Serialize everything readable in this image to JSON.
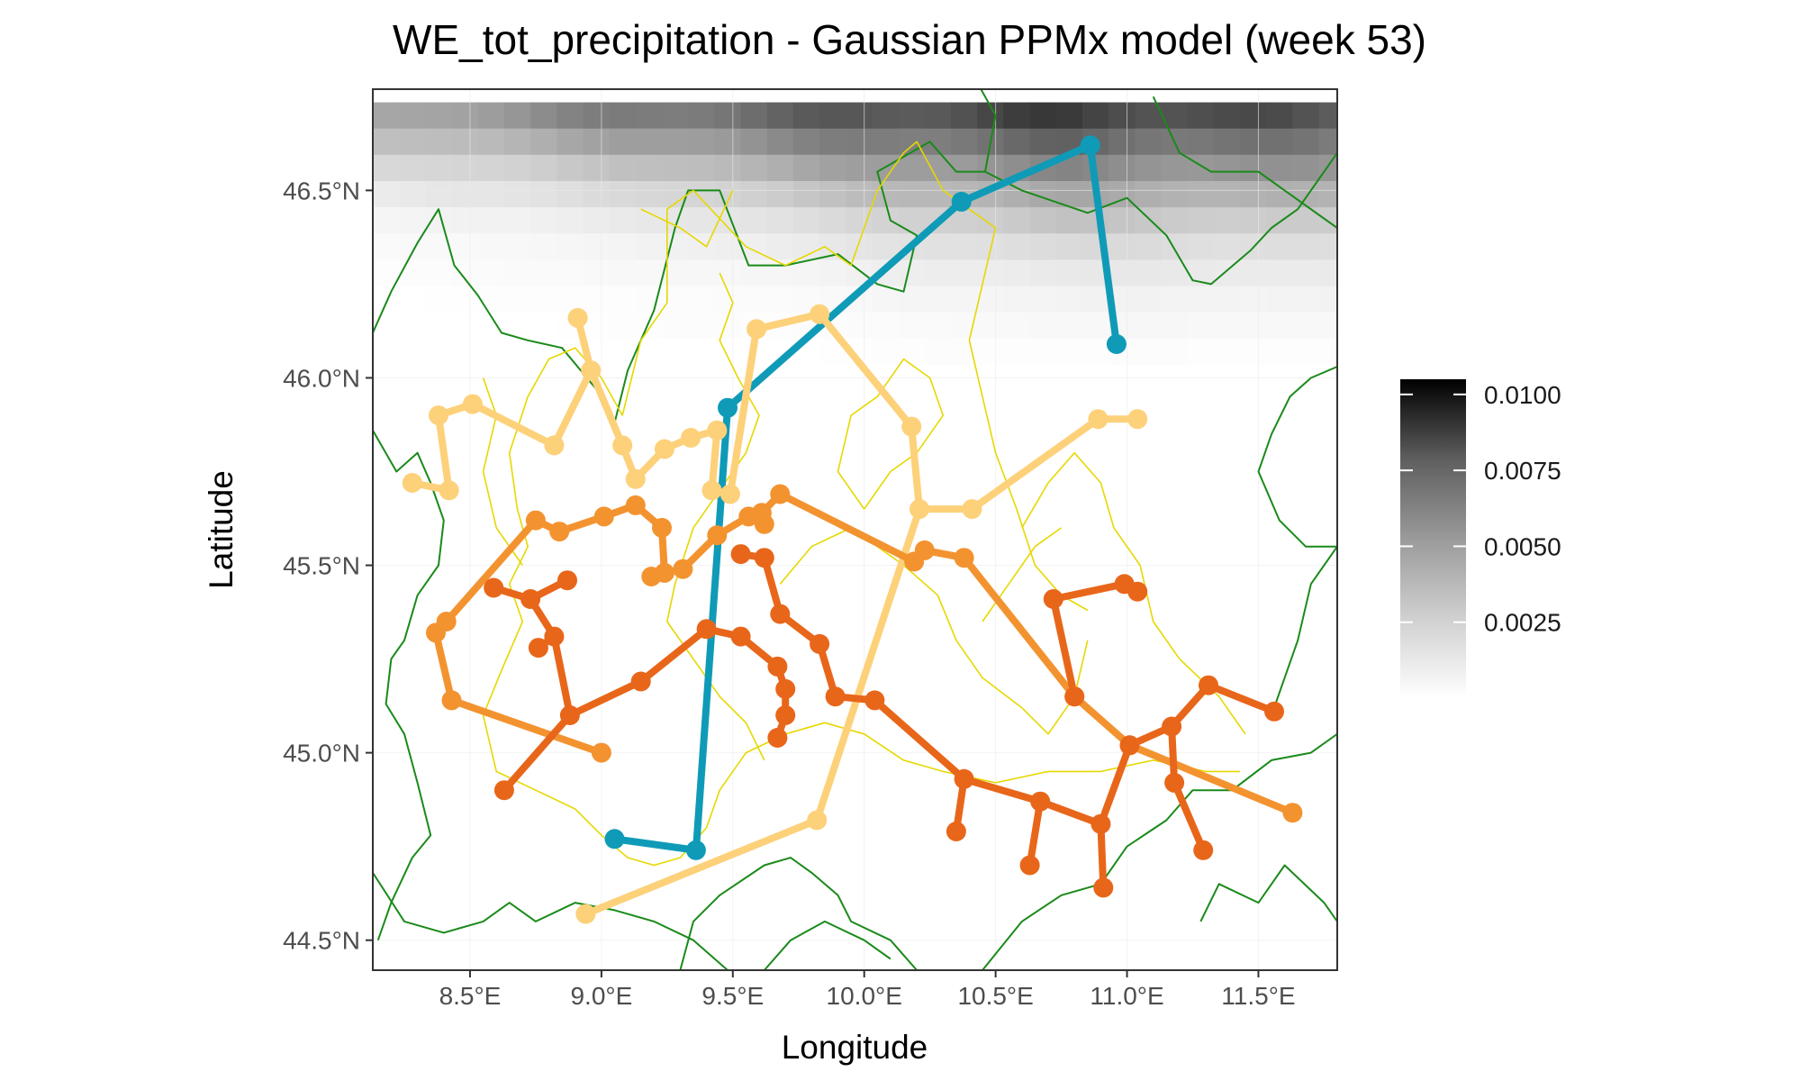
{
  "title": "WE_tot_precipitation - Gaussian PPMx model (week 53)",
  "colors": {
    "border_green": "#1a8a1a",
    "region_yellow": "#e6d800",
    "cluster_blue": "#0f9bb7",
    "cluster_light_orange": "#fdd17a",
    "cluster_orange": "#f39330",
    "cluster_dark_orange": "#e8661a",
    "tile_high": "#000000",
    "tile_low": "#ffffff"
  },
  "chart_data": {
    "type": "map",
    "xlabel": "Longitude",
    "ylabel": "Latitude",
    "xlim": [
      8.13,
      11.8
    ],
    "ylim": [
      44.42,
      46.77
    ],
    "x_ticks": [
      8.5,
      9.0,
      9.5,
      10.0,
      10.5,
      11.0,
      11.5
    ],
    "x_tick_labels": [
      "8.5°E",
      "9.0°E",
      "9.5°E",
      "10.0°E",
      "10.5°E",
      "11.0°E",
      "11.5°E"
    ],
    "y_ticks": [
      44.5,
      45.0,
      45.5,
      46.0,
      46.5
    ],
    "y_tick_labels": [
      "44.5°N",
      "45.0°N",
      "45.5°N",
      "46.0°N",
      "46.5°N"
    ],
    "background_panel": "white",
    "grid": "faint",
    "legend": {
      "placement": "right",
      "type": "colorbar",
      "range": [
        0,
        0.0105
      ],
      "ticks": [
        0.0025,
        0.005,
        0.0075,
        0.01
      ],
      "tick_labels": [
        "0.0025",
        "0.0050",
        "0.0075",
        "0.0100"
      ]
    },
    "precipitation_field": {
      "description_rows_top_to_bottom_lat": [
        46.7,
        46.63,
        46.56,
        46.49,
        46.42,
        46.35,
        46.28,
        46.21,
        46.14,
        46.07,
        46.0
      ],
      "lon_profile": [
        8.15,
        8.7,
        9.2,
        9.7,
        10.2,
        10.7,
        11.2,
        11.7
      ],
      "intensity_by_row": [
        [
          0.0035,
          0.0045,
          0.0055,
          0.0063,
          0.0072,
          0.0078,
          0.0074,
          0.0068
        ],
        [
          0.0025,
          0.0032,
          0.004,
          0.0048,
          0.0056,
          0.0062,
          0.0058,
          0.0054
        ],
        [
          0.0015,
          0.002,
          0.0026,
          0.0034,
          0.0042,
          0.0048,
          0.0045,
          0.0042
        ],
        [
          0.0008,
          0.0012,
          0.0016,
          0.0022,
          0.003,
          0.0035,
          0.0033,
          0.003
        ],
        [
          0.0004,
          0.0006,
          0.0009,
          0.0013,
          0.0019,
          0.0024,
          0.0022,
          0.002
        ],
        [
          0.0002,
          0.0003,
          0.0005,
          0.0008,
          0.0012,
          0.0015,
          0.0014,
          0.0013
        ],
        [
          0.0001,
          0.0002,
          0.0003,
          0.0004,
          0.0007,
          0.0009,
          0.0009,
          0.0008
        ],
        [
          0.0,
          0.0001,
          0.0001,
          0.0002,
          0.0004,
          0.0005,
          0.0005,
          0.0005
        ],
        [
          0.0,
          0.0,
          0.0001,
          0.0001,
          0.0002,
          0.0003,
          0.0003,
          0.0003
        ],
        [
          0.0,
          0.0,
          0.0,
          0.0,
          0.0001,
          0.0001,
          0.0001,
          0.0001
        ],
        [
          0.0,
          0.0,
          0.0,
          0.0,
          0.0,
          0.0,
          0.0,
          0.0
        ]
      ]
    },
    "clusters": [
      {
        "color": "#0f9bb7",
        "edges": [
          [
            [
              9.05,
              44.77
            ],
            [
              9.36,
              44.74
            ]
          ],
          [
            [
              9.36,
              44.74
            ],
            [
              9.48,
              45.92
            ]
          ],
          [
            [
              9.48,
              45.92
            ],
            [
              10.37,
              46.47
            ]
          ],
          [
            [
              10.37,
              46.47
            ],
            [
              10.86,
              46.62
            ]
          ],
          [
            [
              10.86,
              46.62
            ],
            [
              10.96,
              46.09
            ]
          ]
        ]
      },
      {
        "color": "#fdd17a",
        "edges": [
          [
            [
              8.28,
              45.72
            ],
            [
              8.42,
              45.7
            ]
          ],
          [
            [
              8.42,
              45.7
            ],
            [
              8.38,
              45.9
            ]
          ],
          [
            [
              8.38,
              45.9
            ],
            [
              8.51,
              45.93
            ]
          ],
          [
            [
              8.51,
              45.93
            ],
            [
              8.82,
              45.82
            ]
          ],
          [
            [
              8.82,
              45.82
            ],
            [
              8.96,
              46.02
            ]
          ],
          [
            [
              8.96,
              46.02
            ],
            [
              8.91,
              46.16
            ]
          ],
          [
            [
              8.96,
              46.02
            ],
            [
              9.08,
              45.82
            ]
          ],
          [
            [
              9.08,
              45.82
            ],
            [
              9.13,
              45.73
            ]
          ],
          [
            [
              9.13,
              45.73
            ],
            [
              9.24,
              45.81
            ]
          ],
          [
            [
              9.24,
              45.81
            ],
            [
              9.34,
              45.84
            ]
          ],
          [
            [
              9.34,
              45.84
            ],
            [
              9.44,
              45.86
            ]
          ],
          [
            [
              9.44,
              45.86
            ],
            [
              9.42,
              45.7
            ]
          ],
          [
            [
              9.42,
              45.7
            ],
            [
              9.49,
              45.69
            ]
          ],
          [
            [
              9.49,
              45.69
            ],
            [
              9.59,
              46.13
            ]
          ],
          [
            [
              9.59,
              46.13
            ],
            [
              9.83,
              46.17
            ]
          ],
          [
            [
              9.83,
              46.17
            ],
            [
              10.18,
              45.87
            ]
          ],
          [
            [
              10.18,
              45.87
            ],
            [
              10.21,
              45.65
            ]
          ],
          [
            [
              10.21,
              45.65
            ],
            [
              10.41,
              45.65
            ]
          ],
          [
            [
              10.41,
              45.65
            ],
            [
              10.89,
              45.89
            ]
          ],
          [
            [
              10.89,
              45.89
            ],
            [
              11.04,
              45.89
            ]
          ],
          [
            [
              10.21,
              45.65
            ],
            [
              9.82,
              44.82
            ]
          ],
          [
            [
              9.82,
              44.82
            ],
            [
              8.94,
              44.57
            ]
          ]
        ]
      },
      {
        "color": "#f39330",
        "edges": [
          [
            [
              8.75,
              45.62
            ],
            [
              8.84,
              45.59
            ]
          ],
          [
            [
              8.84,
              45.59
            ],
            [
              9.01,
              45.63
            ]
          ],
          [
            [
              9.01,
              45.63
            ],
            [
              9.13,
              45.66
            ]
          ],
          [
            [
              8.75,
              45.62
            ],
            [
              8.41,
              45.35
            ]
          ],
          [
            [
              8.41,
              45.35
            ],
            [
              8.37,
              45.32
            ]
          ],
          [
            [
              8.37,
              45.32
            ],
            [
              8.43,
              45.14
            ]
          ],
          [
            [
              8.43,
              45.14
            ],
            [
              9.0,
              45.0
            ]
          ],
          [
            [
              9.13,
              45.66
            ],
            [
              9.23,
              45.6
            ]
          ],
          [
            [
              9.23,
              45.6
            ],
            [
              9.24,
              45.48
            ]
          ],
          [
            [
              9.24,
              45.48
            ],
            [
              9.19,
              45.47
            ]
          ],
          [
            [
              9.24,
              45.48
            ],
            [
              9.31,
              45.49
            ]
          ],
          [
            [
              9.31,
              45.49
            ],
            [
              9.44,
              45.58
            ]
          ],
          [
            [
              9.44,
              45.58
            ],
            [
              9.56,
              45.63
            ]
          ],
          [
            [
              9.56,
              45.63
            ],
            [
              9.61,
              45.64
            ]
          ],
          [
            [
              9.61,
              45.64
            ],
            [
              9.62,
              45.61
            ]
          ],
          [
            [
              9.61,
              45.64
            ],
            [
              9.68,
              45.69
            ]
          ],
          [
            [
              9.68,
              45.69
            ],
            [
              10.19,
              45.51
            ]
          ],
          [
            [
              10.19,
              45.51
            ],
            [
              10.23,
              45.54
            ]
          ],
          [
            [
              10.23,
              45.54
            ],
            [
              10.38,
              45.52
            ]
          ],
          [
            [
              10.38,
              45.52
            ],
            [
              10.8,
              45.15
            ]
          ],
          [
            [
              10.8,
              45.15
            ],
            [
              11.01,
              45.02
            ]
          ],
          [
            [
              11.01,
              45.02
            ],
            [
              11.63,
              44.84
            ]
          ]
        ]
      },
      {
        "color": "#e8661a",
        "edges": [
          [
            [
              8.59,
              45.44
            ],
            [
              8.73,
              45.41
            ]
          ],
          [
            [
              8.73,
              45.41
            ],
            [
              8.87,
              45.46
            ]
          ],
          [
            [
              8.73,
              45.41
            ],
            [
              8.82,
              45.31
            ]
          ],
          [
            [
              8.82,
              45.31
            ],
            [
              8.76,
              45.28
            ]
          ],
          [
            [
              8.82,
              45.31
            ],
            [
              8.88,
              45.1
            ]
          ],
          [
            [
              8.88,
              45.1
            ],
            [
              8.63,
              44.9
            ]
          ],
          [
            [
              8.88,
              45.1
            ],
            [
              9.15,
              45.19
            ]
          ],
          [
            [
              9.15,
              45.19
            ],
            [
              9.4,
              45.33
            ]
          ],
          [
            [
              9.4,
              45.33
            ],
            [
              9.53,
              45.31
            ]
          ],
          [
            [
              9.53,
              45.31
            ],
            [
              9.67,
              45.23
            ]
          ],
          [
            [
              9.67,
              45.23
            ],
            [
              9.7,
              45.17
            ]
          ],
          [
            [
              9.7,
              45.17
            ],
            [
              9.7,
              45.1
            ]
          ],
          [
            [
              9.7,
              45.1
            ],
            [
              9.67,
              45.04
            ]
          ],
          [
            [
              9.53,
              45.53
            ],
            [
              9.62,
              45.52
            ]
          ],
          [
            [
              9.62,
              45.52
            ],
            [
              9.68,
              45.37
            ]
          ],
          [
            [
              9.68,
              45.37
            ],
            [
              9.83,
              45.29
            ]
          ],
          [
            [
              9.83,
              45.29
            ],
            [
              9.89,
              45.15
            ]
          ],
          [
            [
              9.89,
              45.15
            ],
            [
              10.04,
              45.14
            ]
          ],
          [
            [
              10.04,
              45.14
            ],
            [
              10.38,
              44.93
            ]
          ],
          [
            [
              10.38,
              44.93
            ],
            [
              10.35,
              44.79
            ]
          ],
          [
            [
              10.38,
              44.93
            ],
            [
              10.67,
              44.87
            ]
          ],
          [
            [
              10.67,
              44.87
            ],
            [
              10.63,
              44.7
            ]
          ],
          [
            [
              10.67,
              44.87
            ],
            [
              10.9,
              44.81
            ]
          ],
          [
            [
              10.9,
              44.81
            ],
            [
              10.91,
              44.64
            ]
          ],
          [
            [
              10.9,
              44.81
            ],
            [
              11.01,
              45.02
            ]
          ],
          [
            [
              11.01,
              45.02
            ],
            [
              11.17,
              45.07
            ]
          ],
          [
            [
              11.17,
              45.07
            ],
            [
              11.31,
              45.18
            ]
          ],
          [
            [
              11.31,
              45.18
            ],
            [
              11.56,
              45.11
            ]
          ],
          [
            [
              11.17,
              45.07
            ],
            [
              11.18,
              44.92
            ]
          ],
          [
            [
              11.18,
              44.92
            ],
            [
              11.29,
              44.74
            ]
          ],
          [
            [
              10.8,
              45.15
            ],
            [
              10.72,
              45.41
            ]
          ],
          [
            [
              10.72,
              45.41
            ],
            [
              10.99,
              45.45
            ]
          ],
          [
            [
              10.99,
              45.45
            ],
            [
              11.04,
              45.43
            ]
          ]
        ]
      }
    ],
    "region_borders_color": "#e6d800",
    "country_borders_color": "#1a8a1a"
  }
}
